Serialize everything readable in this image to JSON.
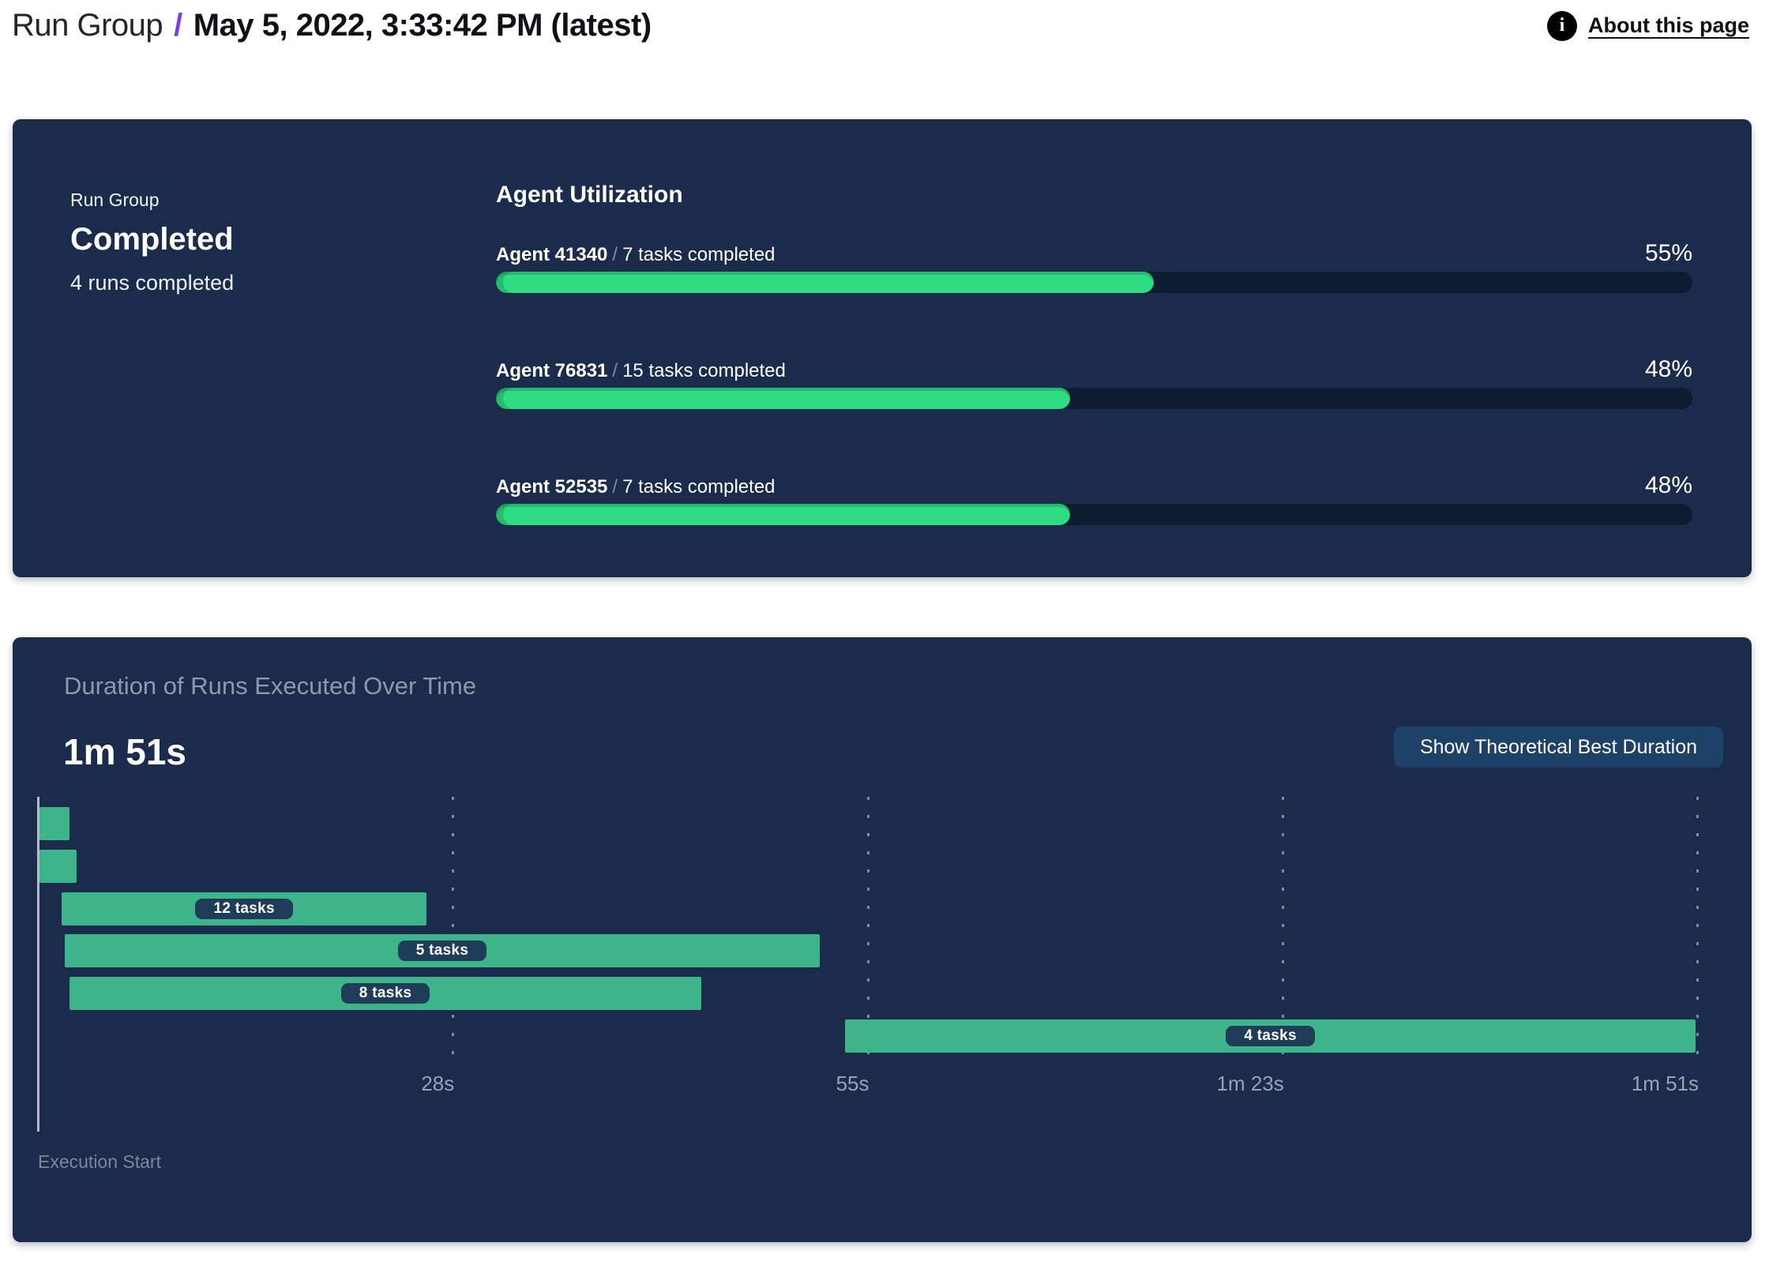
{
  "header": {
    "breadcrumb_root": "Run Group",
    "separator": "/",
    "current_page": "May 5, 2022, 3:33:42 PM (latest)",
    "info_icon": "i",
    "about_link": "About this page"
  },
  "colors": {
    "accent_purple": "#7C3AED",
    "panel_navy": "#1B2B4C",
    "progress_track": "#0E1C31",
    "progress_green": "#2EDC81",
    "gantt_green": "#3EB48A",
    "pill_navy": "#1F3D58",
    "button_navy": "#1E4168",
    "muted_text": "#8E99AC"
  },
  "run_group_panel": {
    "label": "Run Group",
    "status": "Completed",
    "runs_summary": "4 runs completed",
    "agent_utilization": {
      "heading": "Agent Utilization",
      "separator": "/",
      "agents": [
        {
          "name": "Agent 41340",
          "tasks": "7 tasks completed",
          "utilization_pct": 55,
          "utilization_label": "55%"
        },
        {
          "name": "Agent 76831",
          "tasks": "15 tasks completed",
          "utilization_pct": 48,
          "utilization_label": "48%"
        },
        {
          "name": "Agent 52535",
          "tasks": "7 tasks completed",
          "utilization_pct": 48,
          "utilization_label": "48%"
        }
      ]
    }
  },
  "duration_panel": {
    "title": "Duration of Runs Executed Over Time",
    "total_duration": "1m 51s",
    "button_label": "Show Theoretical Best Duration",
    "execution_start_label": "Execution Start"
  },
  "chart_data": {
    "type": "gantt",
    "title": "Duration of Runs Executed Over Time",
    "total_duration_label": "1m 51s",
    "x_axis": {
      "unit": "seconds",
      "min_s": 0,
      "max_s": 111,
      "origin_label": "Execution Start",
      "ticks": [
        {
          "label": "28s",
          "seconds": 27.75
        },
        {
          "label": "55s",
          "seconds": 55.5
        },
        {
          "label": "1m 23s",
          "seconds": 83.25
        },
        {
          "label": "1m 51s",
          "seconds": 111
        }
      ]
    },
    "bars": [
      {
        "row": 0,
        "start_s": 0.1,
        "end_s": 2.1,
        "label": "",
        "tasks": null
      },
      {
        "row": 1,
        "start_s": 0.1,
        "end_s": 2.6,
        "label": "",
        "tasks": null
      },
      {
        "row": 2,
        "start_s": 1.6,
        "end_s": 26.0,
        "label": "12 tasks",
        "tasks": 12
      },
      {
        "row": 3,
        "start_s": 1.8,
        "end_s": 52.3,
        "label": "5 tasks",
        "tasks": 5
      },
      {
        "row": 4,
        "start_s": 2.1,
        "end_s": 44.4,
        "label": "8 tasks",
        "tasks": 8
      },
      {
        "row": 5,
        "start_s": 54.0,
        "end_s": 110.9,
        "label": "4 tasks",
        "tasks": 4
      }
    ]
  }
}
